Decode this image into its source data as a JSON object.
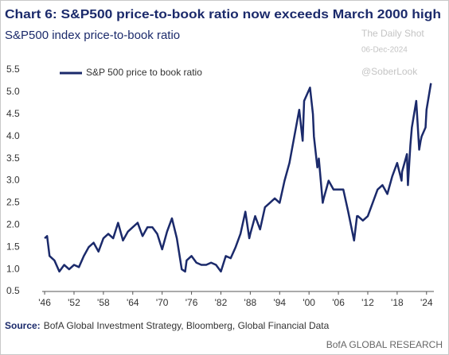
{
  "chart_data": {
    "type": "line",
    "title": "Chart 6: S&P500 price-to-book ratio now exceeds March 2000 high",
    "subtitle": "S&P500 index price-to-book ratio",
    "watermark": [
      "The Daily Shot",
      "06-Dec-2024",
      "@SoberLook"
    ],
    "source_label": "Source:",
    "source": "BofA Global Investment Strategy, Bloomberg, Global Financial Data",
    "branding": "BofA GLOBAL RESEARCH",
    "legend": "upper left",
    "xlim": [
      1945.5,
      2025.5
    ],
    "xticks": [
      {
        "value": 1946,
        "label": "'46"
      },
      {
        "value": 1952,
        "label": "'52"
      },
      {
        "value": 1958,
        "label": "'58"
      },
      {
        "value": 1964,
        "label": "'64"
      },
      {
        "value": 1970,
        "label": "'70"
      },
      {
        "value": 1976,
        "label": "'76"
      },
      {
        "value": 1982,
        "label": "'82"
      },
      {
        "value": 1988,
        "label": "'88"
      },
      {
        "value": 1994,
        "label": "'94"
      },
      {
        "value": 2000,
        "label": "'00"
      },
      {
        "value": 2006,
        "label": "'06"
      },
      {
        "value": 2012,
        "label": "'12"
      },
      {
        "value": 2018,
        "label": "'18"
      },
      {
        "value": 2024,
        "label": "'24"
      }
    ],
    "ylim": [
      0.5,
      5.5
    ],
    "yticks": [
      0.5,
      {
        "value": 1,
        "label": "1.0"
      },
      1.5,
      {
        "value": 2,
        "label": "2.0"
      },
      2.5,
      {
        "value": 3,
        "label": "3.0"
      },
      3.5,
      {
        "value": 4,
        "label": "4.0"
      },
      4.5,
      {
        "value": 5,
        "label": "5.0"
      },
      5.5
    ],
    "x": [
      1946,
      1946.5,
      1947,
      1948,
      1949,
      1950,
      1951,
      1952,
      1953,
      1954,
      1955,
      1956,
      1957,
      1958,
      1959,
      1960,
      1961,
      1962,
      1963,
      1964,
      1965,
      1966,
      1967,
      1968,
      1969,
      1970,
      1971,
      1972,
      1973,
      1974,
      1974.7,
      1975,
      1976,
      1977,
      1978,
      1979,
      1980,
      1981,
      1982,
      1983,
      1984,
      1985,
      1986,
      1987,
      1987.8,
      1988,
      1989,
      1990,
      1991,
      1992,
      1993,
      1994,
      1995,
      1996,
      1997,
      1998,
      1998.7,
      1999,
      2000.2,
      2000.8,
      2001,
      2001.7,
      2002,
      2002.8,
      2003,
      2004,
      2005,
      2006,
      2007,
      2008,
      2009.2,
      2009.8,
      2010,
      2011,
      2012,
      2013,
      2014,
      2015,
      2016,
      2017,
      2018,
      2018.9,
      2019,
      2020,
      2020.2,
      2020.7,
      2021,
      2021.9,
      2022.5,
      2022.8,
      2023,
      2023.8,
      2024,
      2024.9
    ],
    "series": [
      {
        "name": "S&P 500 price to book ratio",
        "color": "#1b2a6b",
        "values": [
          1.7,
          1.75,
          1.3,
          1.2,
          0.95,
          1.1,
          1.0,
          1.1,
          1.05,
          1.3,
          1.5,
          1.6,
          1.4,
          1.7,
          1.8,
          1.7,
          2.05,
          1.65,
          1.85,
          1.95,
          2.05,
          1.75,
          1.95,
          1.95,
          1.8,
          1.45,
          1.85,
          2.15,
          1.7,
          1.0,
          0.95,
          1.2,
          1.3,
          1.15,
          1.1,
          1.1,
          1.15,
          1.1,
          0.95,
          1.3,
          1.25,
          1.5,
          1.8,
          2.3,
          1.7,
          1.8,
          2.2,
          1.9,
          2.4,
          2.5,
          2.6,
          2.5,
          3.0,
          3.4,
          4.0,
          4.6,
          3.9,
          4.8,
          5.1,
          4.5,
          4.0,
          3.3,
          3.5,
          2.5,
          2.6,
          3.0,
          2.8,
          2.8,
          2.8,
          2.3,
          1.65,
          2.2,
          2.2,
          2.1,
          2.2,
          2.5,
          2.8,
          2.9,
          2.7,
          3.1,
          3.4,
          3.0,
          3.2,
          3.6,
          2.9,
          3.8,
          4.2,
          4.8,
          3.7,
          3.9,
          4.0,
          4.2,
          4.6,
          5.2
        ]
      }
    ]
  }
}
